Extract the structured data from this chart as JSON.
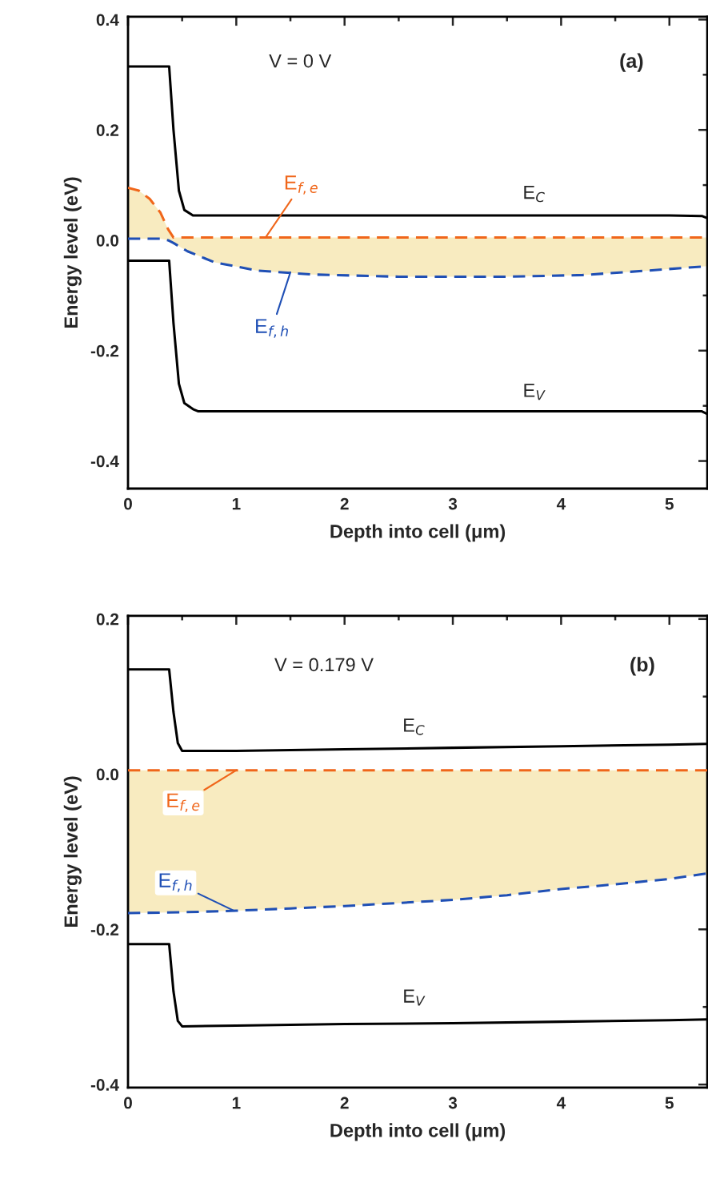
{
  "chart_data": [
    {
      "type": "line",
      "xlabel": "Depth into cell (μm)",
      "ylabel": "Energy level (eV)",
      "xlim": [
        0,
        5.35
      ],
      "ylim": [
        -0.45,
        0.405
      ],
      "xticks": [
        0,
        {
          "value": 0.5,
          "label": null
        },
        1,
        {
          "value": 1.5,
          "label": null
        },
        2,
        {
          "value": 2.5,
          "label": null
        },
        3,
        {
          "value": 3.5,
          "label": null
        },
        4,
        {
          "value": 4.5,
          "label": null
        },
        5
      ],
      "yticks": [
        -0.4,
        {
          "value": -0.3,
          "label": null
        },
        -0.2,
        {
          "value": -0.1,
          "label": null
        },
        {
          "value": 0,
          "label": "0.0"
        },
        {
          "value": 0.1,
          "label": null
        },
        0.2,
        {
          "value": 0.3,
          "label": null
        },
        0.4
      ],
      "grid": false,
      "series": [
        {
          "color": "#000000",
          "line_style": "solid",
          "x": [
            0,
            0.38,
            0.42,
            0.47,
            0.52,
            0.6,
            1,
            2,
            3,
            4,
            5,
            5.3,
            5.35
          ],
          "values": [
            0.315,
            0.315,
            0.2,
            0.09,
            0.055,
            0.045,
            0.045,
            0.045,
            0.045,
            0.045,
            0.045,
            0.044,
            0.04
          ]
        },
        {
          "color": "#000000",
          "line_style": "solid",
          "x": [
            0,
            0.38,
            0.42,
            0.47,
            0.52,
            0.6,
            0.65,
            1,
            2,
            3,
            4,
            5,
            5.3,
            5.35
          ],
          "values": [
            -0.037,
            -0.037,
            -0.15,
            -0.26,
            -0.295,
            -0.306,
            -0.31,
            -0.31,
            -0.31,
            -0.31,
            -0.31,
            -0.31,
            -0.31,
            -0.315
          ]
        },
        {
          "color": "#f0661a",
          "line_style": "dashed",
          "x": [
            0,
            0.1,
            0.2,
            0.3,
            0.37,
            0.42,
            0.55,
            0.8,
            1.2,
            1.7,
            2.5,
            3.5,
            4.2,
            4.8,
            5.35
          ],
          "values": [
            0.095,
            0.09,
            0.075,
            0.05,
            0.02,
            0.005,
            0.005,
            0.005,
            0.005,
            0.005,
            0.005,
            0.005,
            0.005,
            0.005,
            0.005
          ]
        },
        {
          "color": "#1f4fb5",
          "line_style": "dashed",
          "x": [
            0,
            0.1,
            0.2,
            0.3,
            0.37,
            0.42,
            0.55,
            0.8,
            1.2,
            1.7,
            2.5,
            3.5,
            4.2,
            4.8,
            5.35
          ],
          "values": [
            0.003,
            0.003,
            0.003,
            0.003,
            0.0,
            -0.005,
            -0.02,
            -0.04,
            -0.055,
            -0.062,
            -0.066,
            -0.066,
            -0.063,
            -0.055,
            -0.047
          ],
          "lower": [
            0.003,
            0.003,
            0.003,
            0.003,
            0.0,
            -0.005,
            -0.02,
            -0.04,
            -0.055,
            -0.062,
            -0.066,
            -0.066,
            -0.063,
            -0.055,
            -0.047
          ],
          "upper": [
            0.095,
            0.09,
            0.075,
            0.05,
            0.02,
            0.005,
            0.005,
            0.005,
            0.005,
            0.005,
            0.005,
            0.005,
            0.005,
            0.005,
            0.005
          ]
        }
      ],
      "annotations": [
        "V = 0 V",
        "(a)",
        "E$_{C}$",
        "E$_{V}$",
        {
          "text": "E$_{f,e}$",
          "x": 1.27,
          "y": 0.005
        },
        {
          "text": "E$_{f,h}$",
          "x": 1.5,
          "y": -0.058
        }
      ]
    },
    {
      "type": "line",
      "xlabel": "Depth into cell (μm)",
      "ylabel": "Energy level (eV)",
      "xlim": [
        0,
        5.35
      ],
      "ylim": [
        -0.404,
        0.204
      ],
      "xticks": [
        0,
        {
          "value": 0.5,
          "label": null
        },
        1,
        {
          "value": 1.5,
          "label": null
        },
        2,
        {
          "value": 2.5,
          "label": null
        },
        3,
        {
          "value": 3.5,
          "label": null
        },
        4,
        {
          "value": 4.5,
          "label": null
        },
        5
      ],
      "yticks": [
        -0.4,
        {
          "value": -0.3,
          "label": null
        },
        -0.2,
        {
          "value": -0.1,
          "label": null
        },
        {
          "value": 0,
          "label": "0.0"
        },
        {
          "value": 0.1,
          "label": null
        },
        0.2
      ],
      "grid": false,
      "series": [
        {
          "color": "#000000",
          "line_style": "solid",
          "x": [
            0,
            0.38,
            0.42,
            0.46,
            0.5,
            1,
            2,
            3,
            4,
            5,
            5.35
          ],
          "values": [
            0.135,
            0.135,
            0.08,
            0.04,
            0.03,
            0.03,
            0.032,
            0.034,
            0.036,
            0.038,
            0.039
          ]
        },
        {
          "color": "#000000",
          "line_style": "solid",
          "x": [
            0,
            0.38,
            0.42,
            0.46,
            0.5,
            1,
            2,
            3,
            4,
            5,
            5.35
          ],
          "values": [
            -0.219,
            -0.219,
            -0.28,
            -0.318,
            -0.325,
            -0.324,
            -0.322,
            -0.321,
            -0.319,
            -0.317,
            -0.316
          ]
        },
        {
          "color": "#f0661a",
          "line_style": "dashed",
          "x": [
            0,
            0.5,
            1,
            1.5,
            2,
            2.5,
            3,
            3.5,
            4,
            4.5,
            5,
            5.35
          ],
          "values": [
            0.005,
            0.005,
            0.005,
            0.005,
            0.005,
            0.005,
            0.005,
            0.005,
            0.005,
            0.005,
            0.005,
            0.005
          ]
        },
        {
          "color": "#1f4fb5",
          "line_style": "dashed",
          "x": [
            0,
            0.5,
            1,
            1.5,
            2,
            2.5,
            3,
            3.5,
            4,
            4.5,
            5,
            5.35
          ],
          "values": [
            -0.179,
            -0.178,
            -0.176,
            -0.173,
            -0.17,
            -0.166,
            -0.162,
            -0.156,
            -0.148,
            -0.142,
            -0.135,
            -0.128
          ],
          "lower": [
            -0.179,
            -0.178,
            -0.176,
            -0.173,
            -0.17,
            -0.166,
            -0.162,
            -0.156,
            -0.148,
            -0.142,
            -0.135,
            -0.128
          ],
          "upper": [
            0.005,
            0.005,
            0.005,
            0.005,
            0.005,
            0.005,
            0.005,
            0.005,
            0.005,
            0.005,
            0.005,
            0.005
          ]
        }
      ],
      "annotations": [
        "V = 0.179 V",
        "(b)",
        "E$_{C}$",
        "E$_{V}$",
        {
          "text": "E$_{f,e}$",
          "x": 1.0,
          "y": 0.005
        },
        {
          "text": "E$_{f,h}$",
          "x": 0.98,
          "y": -0.176
        }
      ]
    }
  ]
}
